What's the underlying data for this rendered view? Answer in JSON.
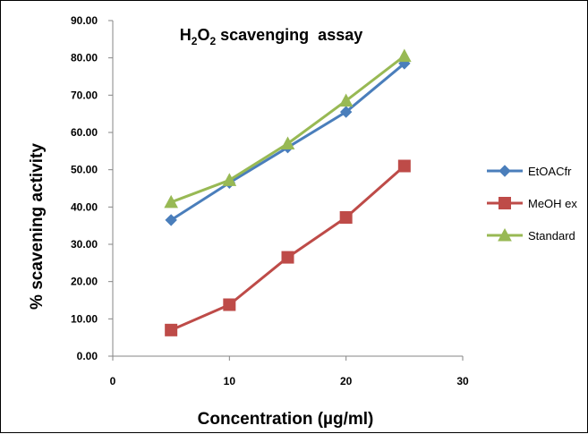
{
  "chart_data": {
    "type": "line",
    "title": "H2O2 scavenging  assay",
    "title_parts": {
      "h": "H",
      "sub1": "2",
      "o": "O",
      "sub2": "2",
      "rest": " scavenging  assay"
    },
    "xlabel": "Concentration (µg/ml)",
    "ylabel": "% scavening activity",
    "xlim": [
      0,
      30
    ],
    "ylim": [
      0,
      90
    ],
    "x_ticks": [
      "0",
      "10",
      "20",
      "30"
    ],
    "y_ticks": [
      "0.00",
      "10.00",
      "20.00",
      "30.00",
      "40.00",
      "50.00",
      "60.00",
      "70.00",
      "80.00",
      "90.00"
    ],
    "x": [
      5,
      10,
      15,
      20,
      25
    ],
    "grid": false,
    "legend_position": "right",
    "series": [
      {
        "name": "EtOACfr",
        "color": "#4a7ebb",
        "marker": "diamond",
        "values": [
          36.5,
          46.5,
          56.0,
          65.5,
          78.5
        ]
      },
      {
        "name": "MeOH ex",
        "color": "#be4b48",
        "marker": "square",
        "values": [
          7.0,
          13.8,
          26.5,
          37.2,
          51.0
        ]
      },
      {
        "name": "Standard",
        "color": "#98b954",
        "marker": "triangle",
        "values": [
          41.3,
          47.2,
          57.0,
          68.5,
          80.5
        ]
      }
    ]
  }
}
